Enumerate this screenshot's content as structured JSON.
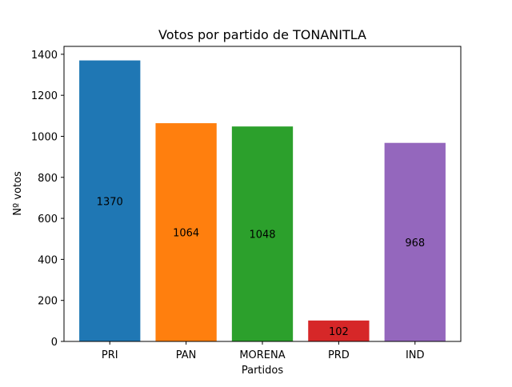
{
  "chart_data": {
    "type": "bar",
    "title": "Votos por partido de TONANITLA",
    "xlabel": "Partidos",
    "ylabel": "Nº votos",
    "categories": [
      "PRI",
      "PAN",
      "MORENA",
      "PRD",
      "IND"
    ],
    "values": [
      1370,
      1064,
      1048,
      102,
      968
    ],
    "data_labels": [
      "1370",
      "1064",
      "1048",
      "102",
      "968"
    ],
    "colors": [
      "#1f77b4",
      "#ff7f0e",
      "#2ca02c",
      "#d62728",
      "#9467bd"
    ],
    "ylim": [
      0,
      1400
    ],
    "yticks": [
      0,
      200,
      400,
      600,
      800,
      1000,
      1200,
      1400
    ],
    "grid": false,
    "legend": "none"
  }
}
